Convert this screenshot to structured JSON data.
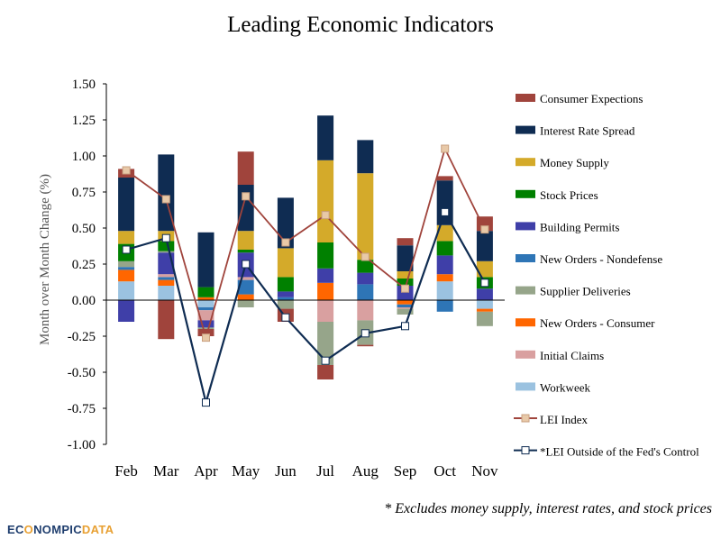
{
  "chart_data": {
    "type": "bar",
    "stacked": true,
    "title": "Leading Economic Indicators",
    "ylabel": "Month over Month Change (%)",
    "xlabel": "",
    "ylim": [
      -1.0,
      1.5
    ],
    "yticks": [
      "1.50",
      "1.25",
      "1.00",
      "0.75",
      "0.50",
      "0.25",
      "0.00",
      "-0.25",
      "-0.50",
      "-0.75",
      "-1.00"
    ],
    "ytick_values": [
      1.5,
      1.25,
      1.0,
      0.75,
      0.5,
      0.25,
      0.0,
      -0.25,
      -0.5,
      -0.75,
      -1.0
    ],
    "categories": [
      "Feb",
      "Mar",
      "Apr",
      "May",
      "Jun",
      "Jul",
      "Aug",
      "Sep",
      "Oct",
      "Nov"
    ],
    "series": [
      {
        "name": "Workweek",
        "kind": "bar",
        "color": "#9bc2e0",
        "values": [
          0.13,
          0.1,
          -0.05,
          0.0,
          0.0,
          0.0,
          0.0,
          0.0,
          0.13,
          -0.06
        ]
      },
      {
        "name": "New Orders - Consumer",
        "kind": "bar",
        "color": "#ff6600",
        "values": [
          0.08,
          0.04,
          0.02,
          0.04,
          0.0,
          0.12,
          0.0,
          -0.03,
          0.05,
          -0.02
        ]
      },
      {
        "name": "New Orders - Nondefense",
        "kind": "bar",
        "color": "#2e75b6",
        "values": [
          0.02,
          0.02,
          -0.02,
          0.1,
          0.02,
          0.0,
          0.11,
          -0.02,
          -0.08,
          0.0
        ]
      },
      {
        "name": "Initial Claims",
        "kind": "bar",
        "color": "#d9a0a0",
        "values": [
          0.0,
          0.02,
          -0.07,
          0.02,
          0.0,
          -0.15,
          -0.14,
          -0.01,
          0.0,
          0.0
        ]
      },
      {
        "name": "Building Permits",
        "kind": "bar",
        "color": "#3f3fa8",
        "values": [
          -0.15,
          0.15,
          -0.05,
          0.17,
          0.04,
          0.1,
          0.08,
          0.1,
          0.13,
          0.08
        ]
      },
      {
        "name": "Supplier Deliveries",
        "kind": "bar",
        "color": "#96a58a",
        "values": [
          0.04,
          0.01,
          -0.01,
          -0.05,
          -0.06,
          -0.3,
          -0.17,
          -0.04,
          0.0,
          -0.1
        ]
      },
      {
        "name": "Stock Prices",
        "kind": "bar",
        "color": "#008000",
        "values": [
          0.12,
          0.07,
          0.07,
          0.02,
          0.1,
          0.18,
          0.09,
          0.05,
          0.1,
          0.08
        ]
      },
      {
        "name": "Money Supply",
        "kind": "bar",
        "color": "#d4aa2a",
        "values": [
          0.09,
          0.07,
          0.0,
          0.13,
          0.2,
          0.57,
          0.6,
          0.05,
          0.11,
          0.11
        ]
      },
      {
        "name": "Interest Rate Spread",
        "kind": "bar",
        "color": "#0f2c52",
        "values": [
          0.37,
          0.53,
          0.38,
          0.32,
          0.35,
          0.31,
          0.23,
          0.18,
          0.31,
          0.21
        ]
      },
      {
        "name": "Consumer Expections",
        "kind": "bar",
        "color": "#a0443c",
        "values": [
          0.06,
          -0.27,
          -0.05,
          0.23,
          -0.09,
          -0.1,
          -0.01,
          0.05,
          0.03,
          0.1
        ]
      },
      {
        "name": "LEI Index",
        "kind": "line",
        "color": "#a0443c",
        "marker_fill": "#e8c9a8",
        "values": [
          0.9,
          0.7,
          -0.26,
          0.72,
          0.4,
          0.59,
          0.3,
          0.08,
          1.05,
          0.49
        ]
      },
      {
        "name": "*LEI Outside of the Fed's Control",
        "kind": "line",
        "color": "#0f2c52",
        "marker_fill": "#ffffff",
        "values": [
          0.35,
          0.43,
          -0.71,
          0.25,
          -0.12,
          -0.42,
          -0.23,
          -0.18,
          0.61,
          0.12
        ]
      }
    ],
    "legend": [
      "Consumer Expections",
      "Interest Rate Spread",
      "Money Supply",
      "Stock Prices",
      "Building Permits",
      "New Orders - Nondefense",
      "Supplier Deliveries",
      "New Orders - Consumer",
      "Initial Claims",
      "Workweek",
      "LEI Index",
      "*LEI Outside of the Fed's Control"
    ],
    "legend_placement": "right",
    "grid": false
  },
  "footnote": "* Excludes money supply, interest rates, and stock prices",
  "logo": {
    "part1": "EC",
    "mark": "O",
    "part2": "NOMPIC",
    "part3": "DATA"
  }
}
